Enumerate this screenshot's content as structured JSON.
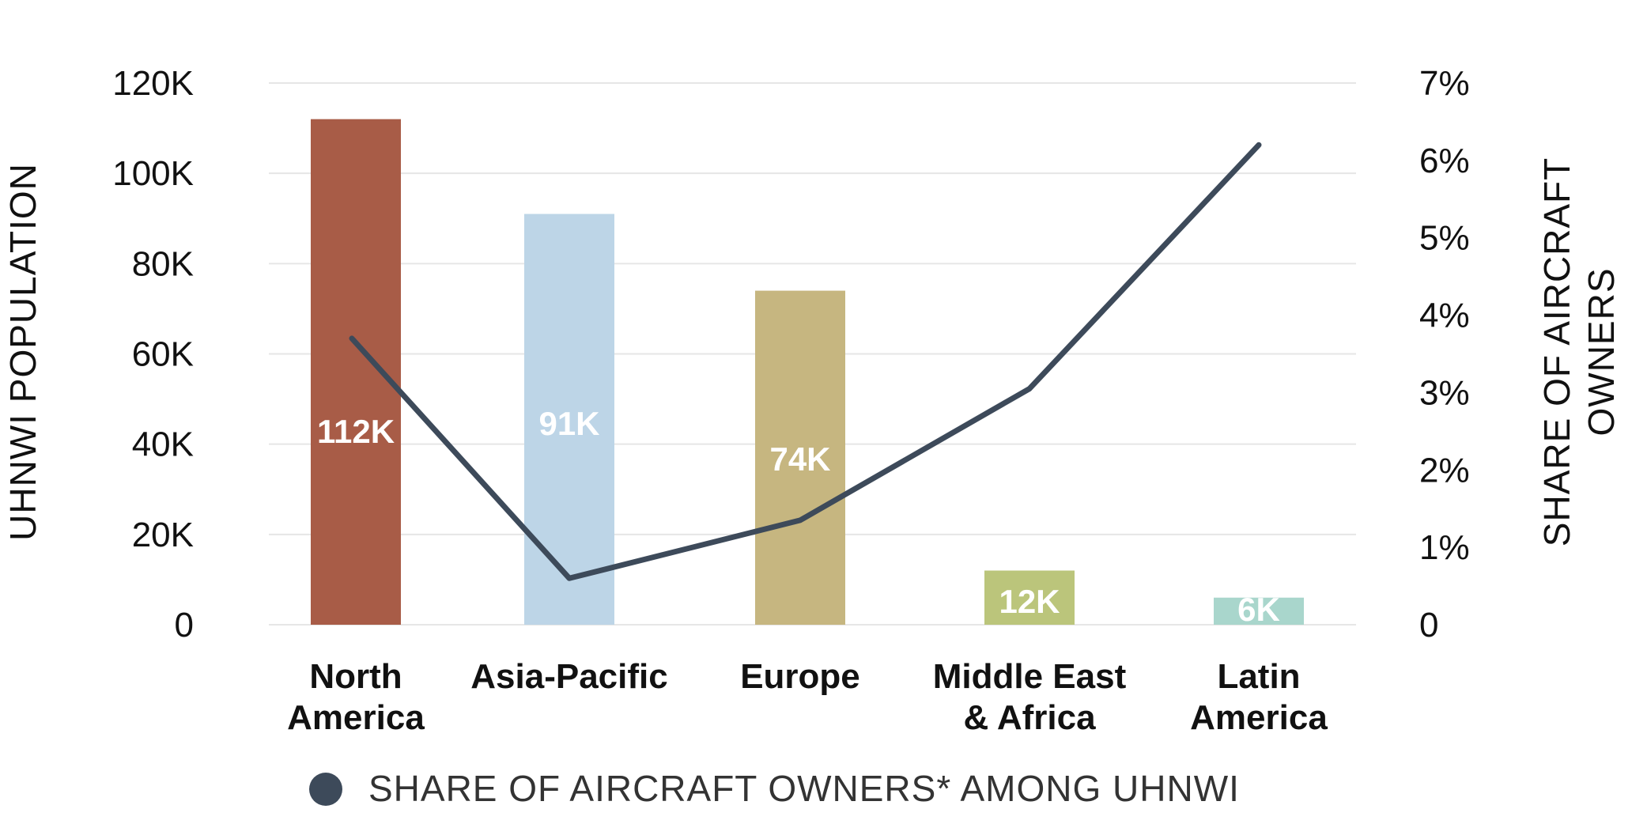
{
  "chart_data": {
    "type": "bar",
    "categories": [
      [
        "North",
        "America"
      ],
      [
        "Asia-Pacific"
      ],
      [
        "Europe"
      ],
      [
        "Middle East",
        "& Africa"
      ],
      [
        "Latin",
        "America"
      ]
    ],
    "series": [
      {
        "type": "bar",
        "axis": "left",
        "values": [
          112000,
          91000,
          74000,
          12000,
          6000
        ],
        "labels": [
          "112K",
          "91K",
          "74K",
          "12K",
          "6K"
        ],
        "colors": [
          "#a85c47",
          "#bdd5e7",
          "#c6b680",
          "#bbc57b",
          "#a9d6cc"
        ]
      },
      {
        "type": "line",
        "axis": "right",
        "name": "SHARE OF AIRCRAFT OWNERS* AMONG UHNWI",
        "values": [
          3.7,
          0.6,
          1.35,
          3.05,
          6.2
        ],
        "color": "#3d4a5a"
      }
    ],
    "ylabel": "UHNWI POPULATION",
    "y2label": [
      "SHARE OF AIRCRAFT",
      "OWNERS"
    ],
    "ylim": [
      0,
      120000
    ],
    "y2lim": [
      0,
      7
    ],
    "yticks": [
      "0",
      "20K",
      "40K",
      "60K",
      "80K",
      "100K",
      "120K"
    ],
    "y2ticks": [
      "0",
      "1%",
      "2%",
      "3%",
      "4%",
      "5%",
      "6%",
      "7%"
    ],
    "grid": true,
    "legend": {
      "placement": "bottom",
      "label": "SHARE OF AIRCRAFT OWNERS* AMONG UHNWI",
      "color": "#3d4a5a"
    }
  }
}
